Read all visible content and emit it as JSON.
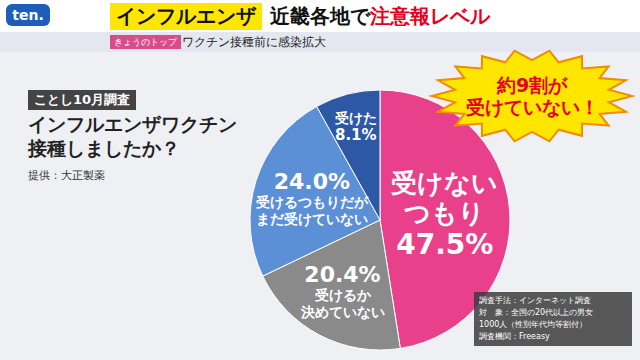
{
  "header": {
    "logo": "ten.",
    "title": [
      "インフルエンザ",
      "近畿各地で",
      "注意報レベル"
    ],
    "tag": "きょうのトップ",
    "subtitle": "ワクチン接種前に感染拡大"
  },
  "chart_data": {
    "type": "pie",
    "subtitle": "ことし10月調査",
    "title": "インフルエンザワクチン\n接種しましたか？",
    "source": "提供：大正製薬",
    "categories": [
      "受けない\nつもり",
      "受けるか\n決めていない",
      "受けるつもりだが\nまだ受けていない",
      "受けた"
    ],
    "values": [
      47.5,
      20.4,
      24.0,
      8.1
    ],
    "value_labels": [
      "47.5%",
      "20.4%",
      "24.0%",
      "8.1%"
    ],
    "colors": [
      "#e8408a",
      "#8a8a8a",
      "#5b8fd6",
      "#2d58a6"
    ],
    "data_labels": true,
    "annotations": [
      "約9割が\n受けていない！"
    ],
    "notes": [
      "調査手法：インターネット調査",
      "対　象：全国の20代以上の男女",
      "1000人（性別年代均等割付）",
      "調査機関：Freeasy"
    ]
  }
}
